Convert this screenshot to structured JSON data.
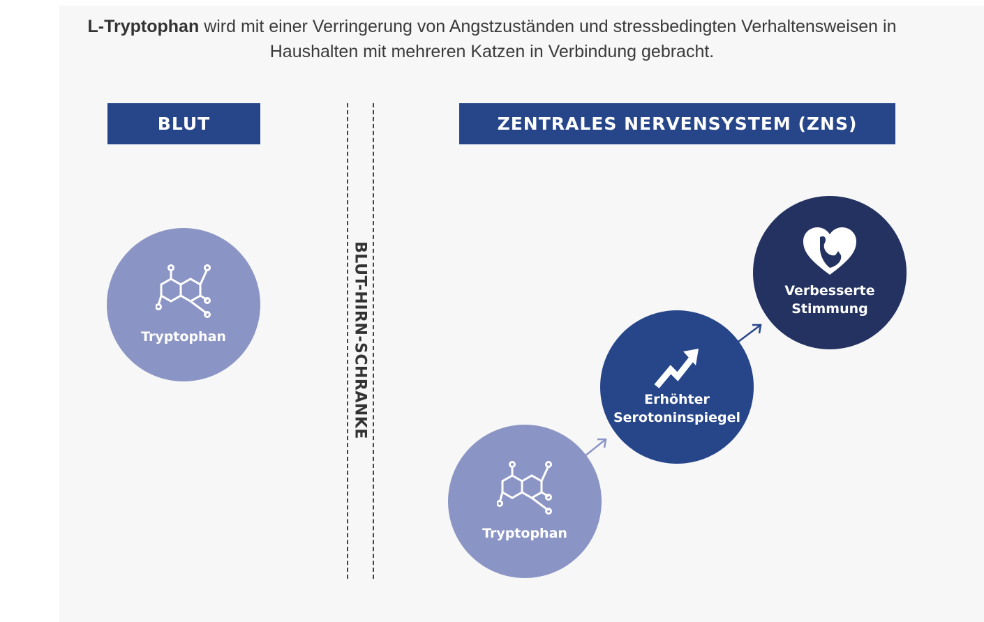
{
  "intro": {
    "bold": "L-Tryptophan",
    "rest": " wird mit einer Verringerung von Angstzuständen und stressbedingten Verhaltensweisen in Haushalten mit mehreren Katzen in Verbindung gebracht."
  },
  "headers": {
    "blood": "BLUT",
    "cns": "ZENTRALES NERVENSYSTEM (ZNS)"
  },
  "barrier": "BLUT-HIRN-SCHRANKE",
  "nodes": {
    "blood_tryptophan": {
      "label": "Tryptophan",
      "icon": "molecule-icon",
      "color": "#8b95c5"
    },
    "cns_tryptophan": {
      "label": "Tryptophan",
      "icon": "molecule-icon",
      "color": "#8b95c5"
    },
    "serotonin": {
      "line1": "Erhöhter",
      "line2": "Serotoninspiegel",
      "icon": "trend-up-icon",
      "color": "#27468a"
    },
    "mood": {
      "line1": "Verbesserte",
      "line2": "Stimmung",
      "icon": "heart-cat-icon",
      "color": "#243261"
    }
  }
}
